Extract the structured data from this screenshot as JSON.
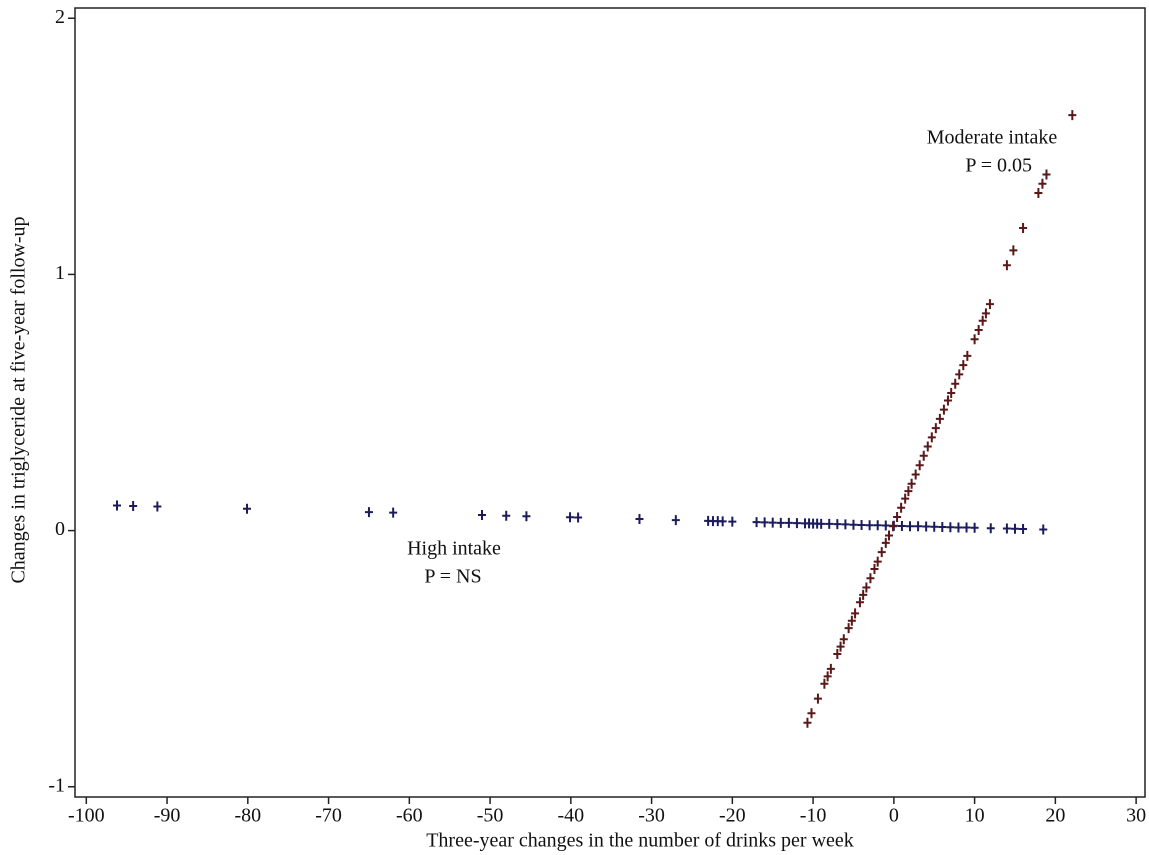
{
  "chart_data": {
    "type": "scatter",
    "xlabel": "Three-year changes in the number of drinks per week",
    "ylabel": "Changes in triglyceride at five-year follow-up",
    "xlim": [
      -101.4,
      31.1
    ],
    "ylim": [
      -1.04,
      2.04
    ],
    "xticks": [
      -100,
      -90,
      -80,
      -70,
      -60,
      -50,
      -40,
      -30,
      -20,
      -10,
      0,
      10,
      20,
      30
    ],
    "yticks": [
      -1,
      0,
      1,
      2
    ],
    "annotations": [
      [
        "Moderate intake",
        "P = 0.05"
      ],
      [
        "High intake",
        "P = NS"
      ]
    ],
    "series": [
      {
        "color": "#1c1c5c",
        "x": [
          -96.2,
          -94.2,
          -91.2,
          -80.1,
          -65.0,
          -62.0,
          -51.0,
          -48.0,
          -45.5,
          -40.1,
          -39.1,
          -31.5,
          -27.0,
          -23.0,
          -22.4,
          -21.8,
          -21.2,
          -20.0,
          -17.0,
          -16.0,
          -15.0,
          -14.0,
          -13.0,
          -12.0,
          -11.0,
          -10.5,
          -10.0,
          -9.5,
          -9.0,
          -8.0,
          -7.0,
          -6.0,
          -5.0,
          -4.0,
          -3.0,
          -2.0,
          -1.0,
          0,
          1,
          2,
          3,
          4,
          5,
          6,
          7,
          8,
          9,
          10,
          12,
          14,
          15,
          16.0,
          18.5
        ],
        "values": [
          0.098,
          0.096,
          0.094,
          0.085,
          0.072,
          0.07,
          0.061,
          0.058,
          0.056,
          0.052,
          0.051,
          0.045,
          0.041,
          0.038,
          0.037,
          0.037,
          0.036,
          0.035,
          0.033,
          0.032,
          0.031,
          0.03,
          0.03,
          0.029,
          0.028,
          0.028,
          0.027,
          0.027,
          0.026,
          0.026,
          0.025,
          0.024,
          0.023,
          0.022,
          0.021,
          0.021,
          0.02,
          0.019,
          0.018,
          0.017,
          0.017,
          0.016,
          0.015,
          0.014,
          0.013,
          0.012,
          0.012,
          0.011,
          0.009,
          0.008,
          0.007,
          0.006,
          0.004
        ]
      },
      {
        "color": "#5a1818",
        "x": [
          -10.7,
          -10.2,
          -9.4,
          -8.6,
          -8.2,
          -7.8,
          -7.0,
          -6.6,
          -6.2,
          -5.6,
          -5.2,
          -4.8,
          -4.2,
          -3.8,
          -3.4,
          -2.9,
          -2.4,
          -2.0,
          -1.5,
          -1.0,
          -0.6,
          -0.1,
          0.4,
          0.9,
          1.4,
          1.8,
          2.2,
          2.7,
          3.2,
          3.7,
          4.2,
          4.7,
          5.2,
          5.7,
          6.2,
          6.7,
          7.1,
          7.6,
          8.1,
          8.6,
          9.1,
          10.0,
          10.5,
          11.0,
          11.4,
          11.9,
          14.0,
          14.8,
          16.0,
          17.9,
          18.4,
          18.9,
          22.1
        ],
        "values": [
          -0.75,
          -0.713,
          -0.656,
          -0.598,
          -0.569,
          -0.54,
          -0.482,
          -0.453,
          -0.424,
          -0.381,
          -0.352,
          -0.323,
          -0.28,
          -0.251,
          -0.222,
          -0.186,
          -0.15,
          -0.121,
          -0.084,
          -0.048,
          -0.019,
          0.017,
          0.053,
          0.089,
          0.125,
          0.154,
          0.183,
          0.219,
          0.255,
          0.292,
          0.328,
          0.364,
          0.4,
          0.436,
          0.472,
          0.508,
          0.537,
          0.573,
          0.61,
          0.646,
          0.682,
          0.747,
          0.783,
          0.819,
          0.848,
          0.884,
          1.036,
          1.094,
          1.181,
          1.318,
          1.354,
          1.39,
          1.622
        ]
      }
    ]
  }
}
